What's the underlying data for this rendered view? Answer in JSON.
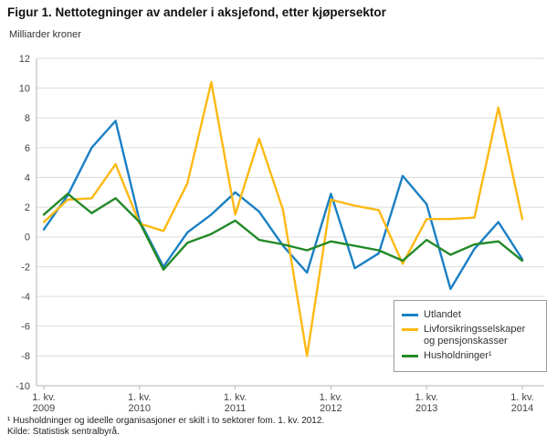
{
  "header": {
    "title": "Figur 1. Nettotegninger av andeler i aksjefond, etter kjøpersektor",
    "unit_label": "Milliarder kroner"
  },
  "footnotes": {
    "note1": "¹ Husholdninger og ideelle organisasjoner er skilt i to sektorer fom. 1. kv. 2012.",
    "source": "Kilde: Statistisk sentralbyrå."
  },
  "chart_data": {
    "type": "line",
    "title": "Figur 1. Nettotegninger av andeler i aksjefond, etter kjøpersektor",
    "ylabel": "Milliarder kroner",
    "xlabel": "",
    "ylim": [
      -10,
      12
    ],
    "y_tick_step": 2,
    "grid": true,
    "legend_position": "lower-right",
    "categories": [
      "2009 K1",
      "2009 K2",
      "2009 K3",
      "2009 K4",
      "2010 K1",
      "2010 K2",
      "2010 K3",
      "2010 K4",
      "2011 K1",
      "2011 K2",
      "2011 K3",
      "2011 K4",
      "2012 K1",
      "2012 K2",
      "2012 K3",
      "2012 K4",
      "2013 K1",
      "2013 K2",
      "2013 K3",
      "2013 K4",
      "2014 K1"
    ],
    "x_tick_labels": [
      {
        "index": 0,
        "top": "1. kv.",
        "bottom": "2009"
      },
      {
        "index": 4,
        "top": "1. kv.",
        "bottom": "2010"
      },
      {
        "index": 8,
        "top": "1. kv.",
        "bottom": "2011"
      },
      {
        "index": 12,
        "top": "1. kv.",
        "bottom": "2012"
      },
      {
        "index": 16,
        "top": "1. kv.",
        "bottom": "2013"
      },
      {
        "index": 20,
        "top": "1. kv.",
        "bottom": "2014"
      }
    ],
    "series": [
      {
        "name": "Utlandet",
        "color": "#1a80c4",
        "values": [
          0.5,
          2.8,
          6.0,
          7.8,
          1.1,
          -2.0,
          0.3,
          1.5,
          3.0,
          1.7,
          -0.6,
          -2.4,
          2.9,
          -2.1,
          -1.1,
          4.1,
          2.2,
          -3.5,
          -0.8,
          1.0,
          -1.5
        ]
      },
      {
        "name": "Livforsikringsselskaper og pensjonskasser",
        "color": "#fdb913",
        "values": [
          1.0,
          2.5,
          2.6,
          4.9,
          0.9,
          0.4,
          3.6,
          10.4,
          1.5,
          6.6,
          1.8,
          -8.0,
          2.5,
          2.1,
          1.8,
          -1.8,
          1.2,
          1.2,
          1.3,
          8.7,
          1.2
        ]
      },
      {
        "name": "Husholdninger¹",
        "color": "#238a28",
        "values": [
          1.5,
          2.9,
          1.6,
          2.6,
          1.0,
          -2.2,
          -0.4,
          0.2,
          1.1,
          -0.2,
          -0.5,
          -0.9,
          -0.3,
          -0.6,
          -0.9,
          -1.6,
          -0.2,
          -1.2,
          -0.5,
          -0.3,
          -1.6
        ]
      }
    ]
  }
}
